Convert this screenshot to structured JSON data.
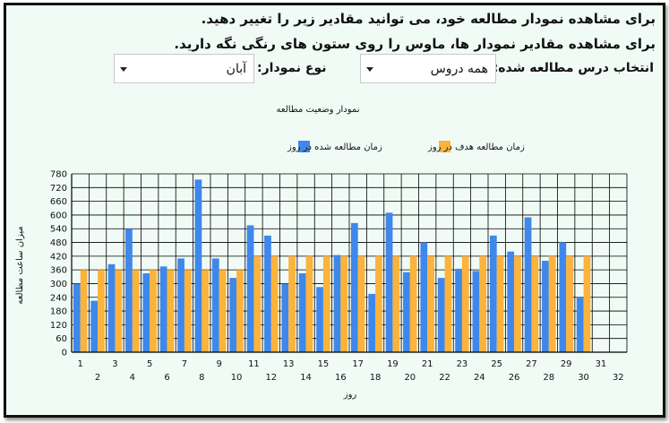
{
  "header": {
    "hint_line1": "برای مشاهده نمودار مطالعه خود، می توانید مقادیر زیر را تغییر دهید.",
    "hint_line2": "برای مشاهده مقادیر نمودار ها، ماوس را روی ستون های رنگی نگه دارید."
  },
  "filters": {
    "course_label": "انتخاب درس مطالعه شده:",
    "course_value": "همه دروس",
    "type_label": "نوع نمودار:",
    "type_value": "آبان"
  },
  "colors": {
    "actual": "#3f87ea",
    "target": "#fbb33c",
    "grid": "#000000"
  },
  "chart_data": {
    "type": "bar",
    "title": "نمودار وضعیت مطالعه",
    "xlabel": "روز",
    "ylabel": "میزان ساعت مطالعه",
    "ylim": [
      0,
      780
    ],
    "yticks": [
      0,
      60,
      120,
      180,
      240,
      300,
      360,
      420,
      480,
      540,
      600,
      660,
      720,
      780
    ],
    "categories": [
      "1",
      "2",
      "3",
      "4",
      "5",
      "6",
      "7",
      "8",
      "9",
      "10",
      "11",
      "12",
      "13",
      "14",
      "15",
      "16",
      "17",
      "18",
      "19",
      "20",
      "21",
      "22",
      "23",
      "24",
      "25",
      "26",
      "27",
      "28",
      "29",
      "30",
      "31",
      "32"
    ],
    "legend": [
      "زمان مطالعه شده در روز",
      "زمان مطالعه هدف در روز"
    ],
    "series": [
      {
        "name": "زمان مطالعه شده در روز",
        "values": [
          300,
          225,
          385,
          540,
          345,
          375,
          410,
          755,
          410,
          325,
          555,
          510,
          300,
          345,
          285,
          425,
          565,
          255,
          610,
          350,
          480,
          325,
          365,
          355,
          510,
          440,
          590,
          400,
          480,
          240,
          null,
          null
        ]
      },
      {
        "name": "زمان مطالعه هدف در روز",
        "values": [
          360,
          360,
          360,
          360,
          360,
          360,
          360,
          360,
          360,
          360,
          420,
          420,
          420,
          420,
          420,
          420,
          420,
          420,
          420,
          420,
          420,
          420,
          420,
          420,
          420,
          420,
          420,
          420,
          420,
          420,
          null,
          null
        ]
      }
    ]
  }
}
